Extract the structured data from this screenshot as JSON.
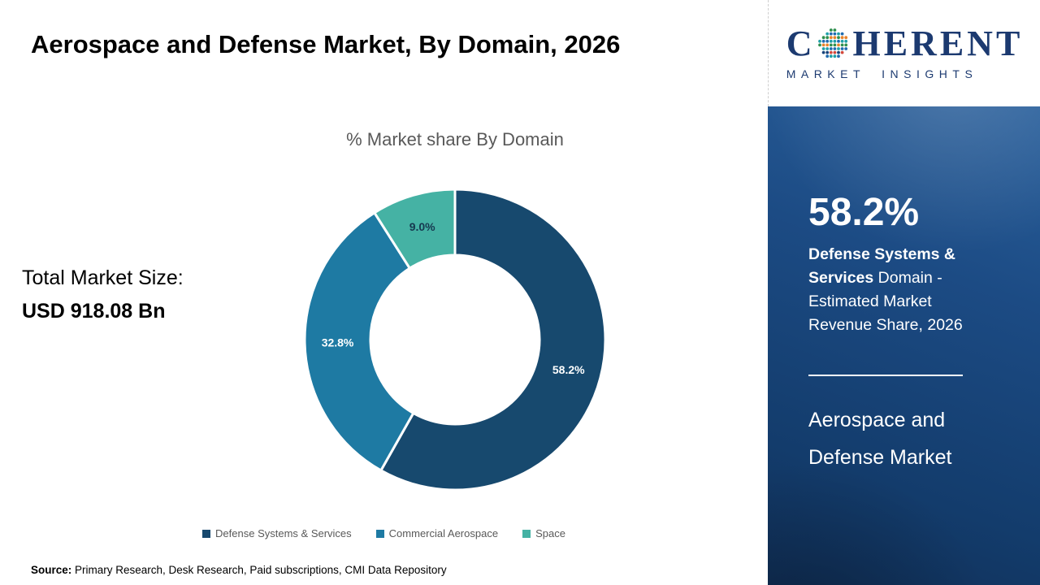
{
  "main": {
    "title": "Aerospace and Defense Market, By Domain, 2026",
    "total_label": "Total Market Size:",
    "total_value": "USD 918.08 Bn",
    "source_label": "Source:",
    "source_text": " Primary Research, Desk Research, Paid subscriptions, CMI Data Repository"
  },
  "chart_data": {
    "type": "pie",
    "subtype": "donut",
    "title": "% Market share By Domain",
    "categories": [
      "Defense Systems & Services",
      "Commercial Aerospace",
      "Space"
    ],
    "values": [
      58.2,
      32.8,
      9.0
    ],
    "labels": [
      "58.2%",
      "32.8%",
      "9.0%"
    ],
    "colors": [
      "#17496e",
      "#1e7aa3",
      "#45b2a4"
    ],
    "label_colors": [
      "#ffffff",
      "#ffffff",
      "#16384f"
    ],
    "start_angle_deg": 0,
    "direction": "clockwise",
    "inner_radius_ratio": 0.56,
    "legend_position": "bottom",
    "total_market_size": "USD 918.08 Bn"
  },
  "sidebar": {
    "logo": {
      "c": "C",
      "rest": "HERENT",
      "sub": "MARKET INSIGHTS"
    },
    "highlight_value": "58.2%",
    "highlight_bold": "Defense Systems & Services",
    "highlight_rest": " Domain - Estimated Market Revenue Share, 2026",
    "panel_title": "Aerospace and Defense Market",
    "colors": {
      "panel": "#1a4a80",
      "logo_navy": "#1c3a70"
    }
  }
}
